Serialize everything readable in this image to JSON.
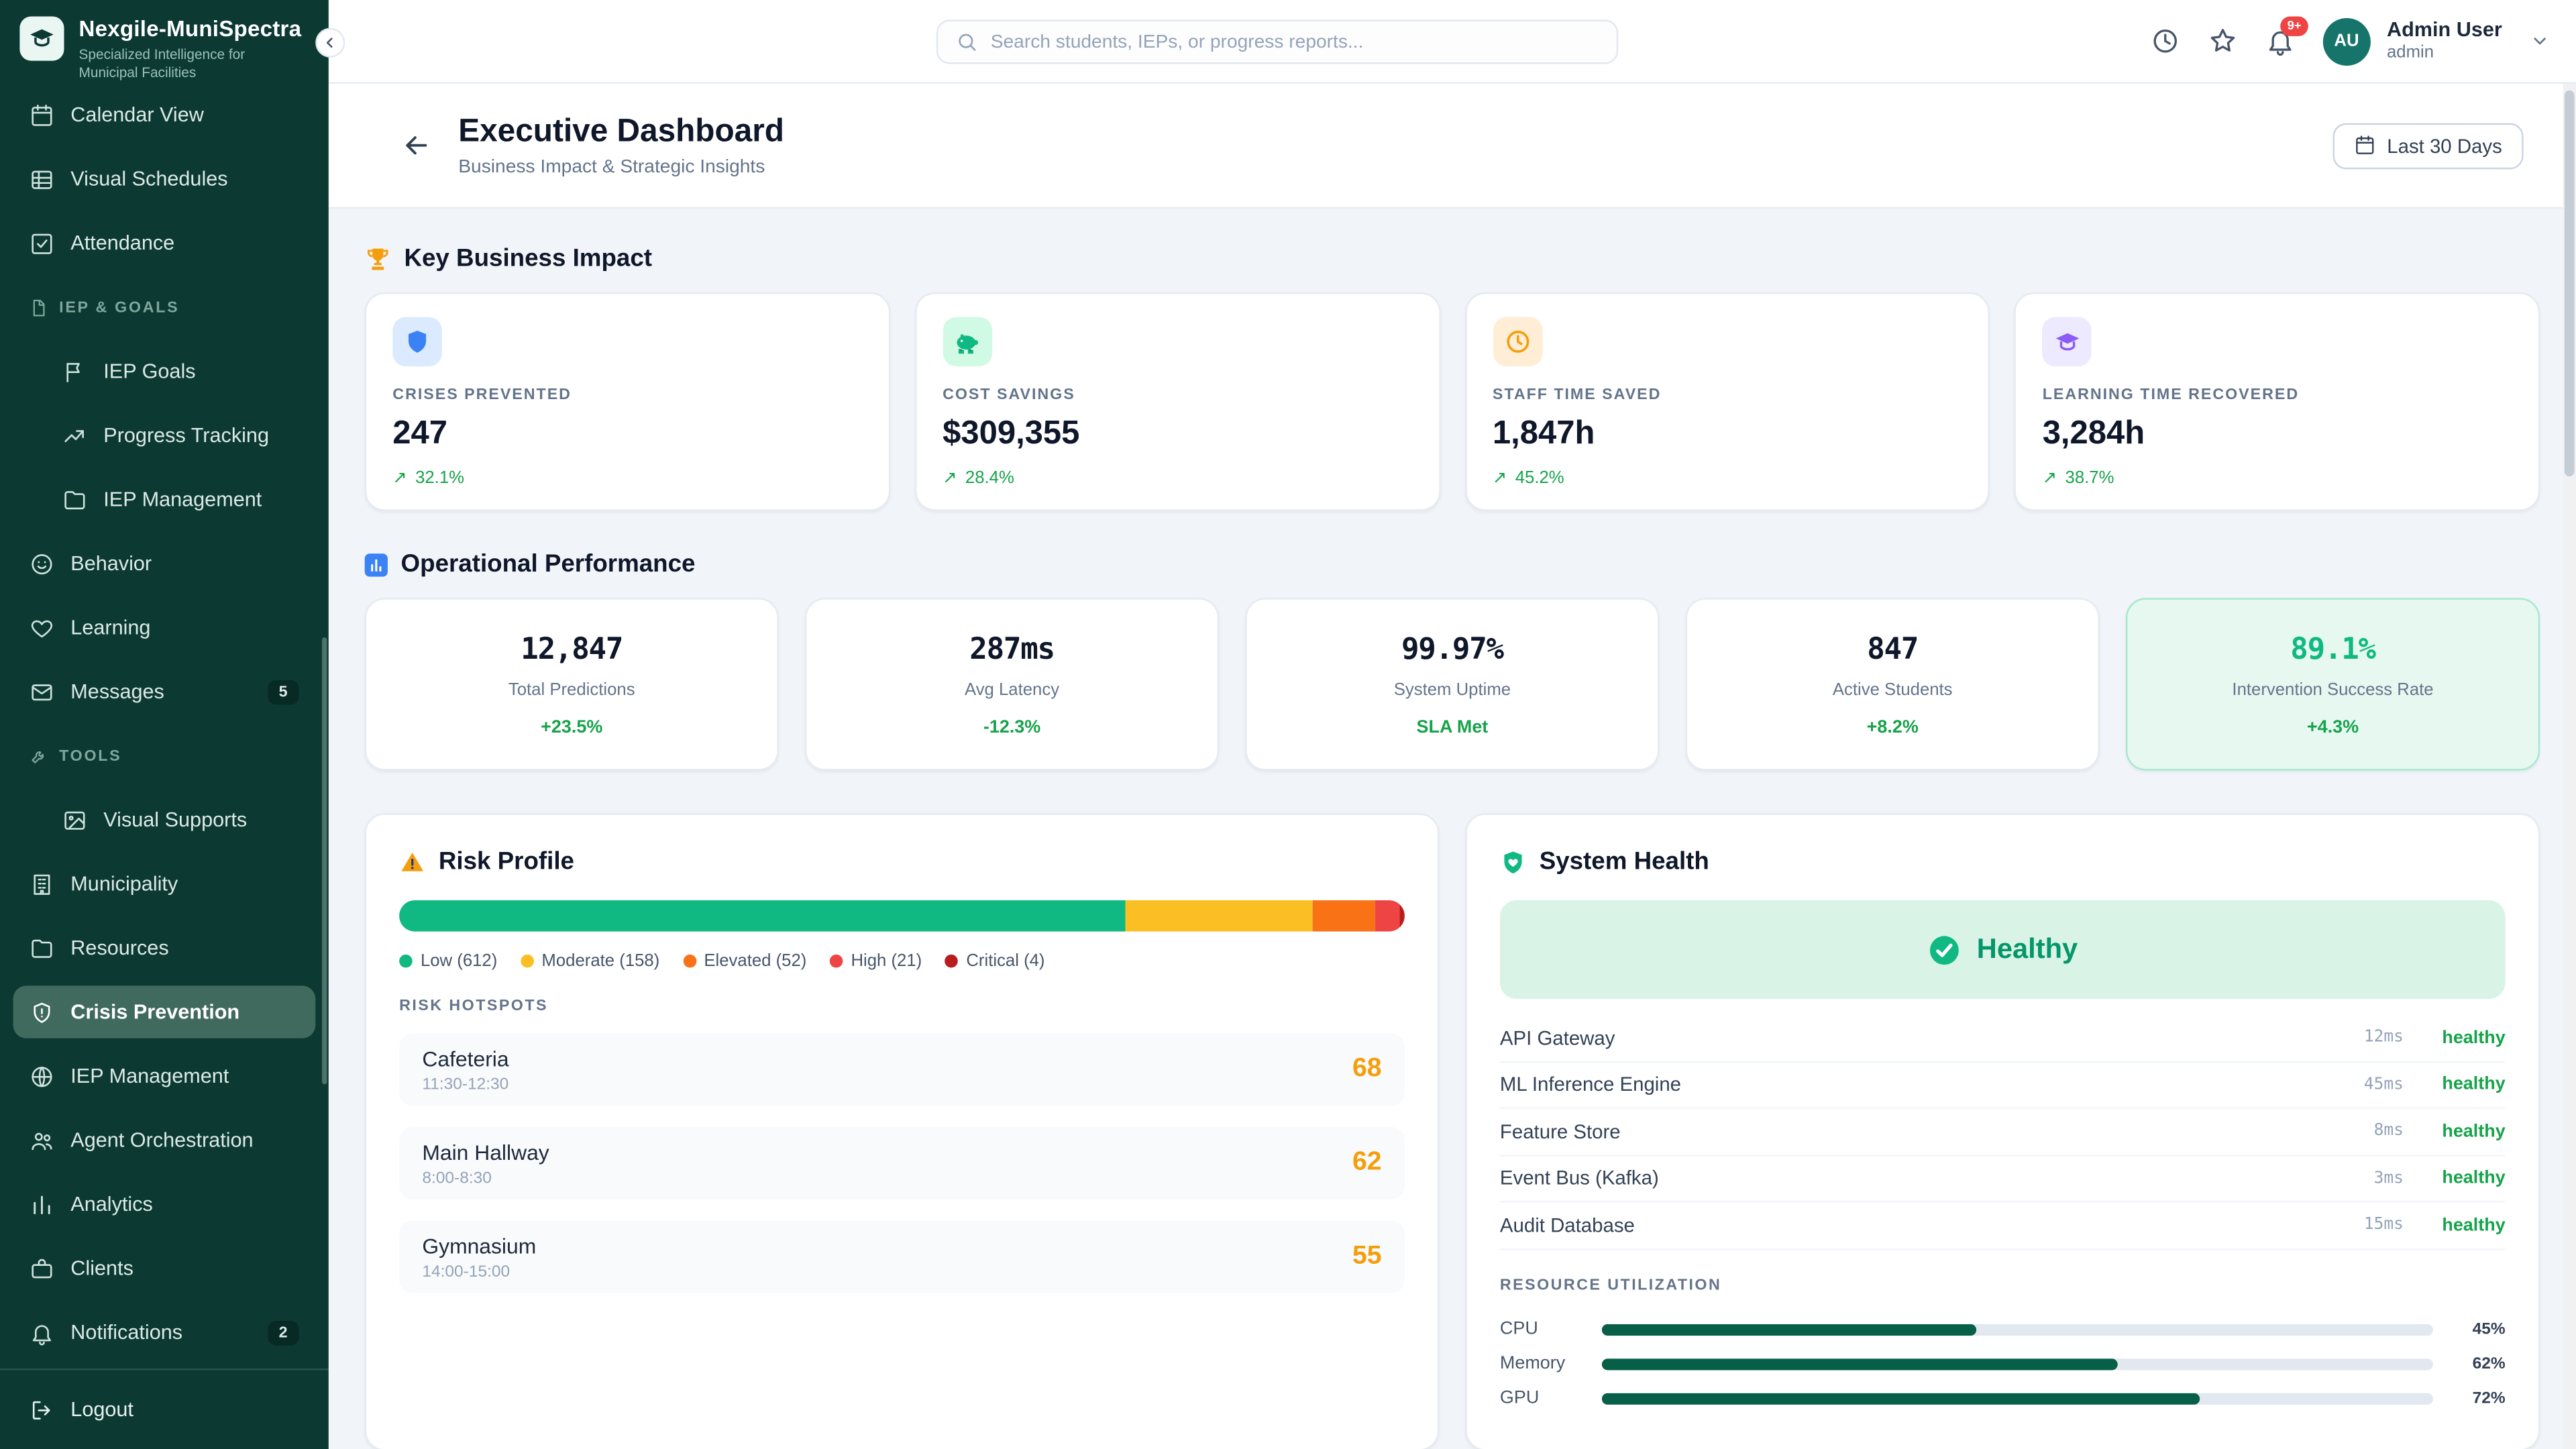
{
  "brand": {
    "title": "Nexgile-MuniSpectra",
    "subtitle": "Specialized Intelligence for Municipal Facilities"
  },
  "sidebar": {
    "items": [
      {
        "label": "Calendar View"
      },
      {
        "label": "Visual Schedules"
      },
      {
        "label": "Attendance"
      },
      {
        "label": "IEP & GOALS"
      },
      {
        "label": "IEP Goals"
      },
      {
        "label": "Progress Tracking"
      },
      {
        "label": "IEP Management"
      },
      {
        "label": "Behavior"
      },
      {
        "label": "Learning"
      },
      {
        "label": "Messages",
        "badge": "5"
      },
      {
        "label": "TOOLS"
      },
      {
        "label": "Visual Supports"
      },
      {
        "label": "Municipality"
      },
      {
        "label": "Resources"
      },
      {
        "label": "Crisis Prevention"
      },
      {
        "label": "IEP Management"
      },
      {
        "label": "Agent Orchestration"
      },
      {
        "label": "Analytics"
      },
      {
        "label": "Clients"
      },
      {
        "label": "Notifications",
        "badge": "2"
      }
    ],
    "logout_label": "Logout"
  },
  "topbar": {
    "search_placeholder": "Search students, IEPs, or progress reports...",
    "notification_badge": "9+",
    "user": {
      "initials": "AU",
      "name": "Admin User",
      "role": "admin"
    }
  },
  "page": {
    "title": "Executive Dashboard",
    "subtitle": "Business Impact & Strategic Insights",
    "date_range": "Last 30 Days"
  },
  "impact": {
    "section_title": "Key Business Impact",
    "cards": [
      {
        "label": "CRISES PREVENTED",
        "value": "247",
        "trend": "32.1%",
        "tint": "#dbeafe",
        "color": "#3b82f6"
      },
      {
        "label": "COST SAVINGS",
        "value": "$309,355",
        "trend": "28.4%",
        "tint": "#d1fae5",
        "color": "#10b981"
      },
      {
        "label": "STAFF TIME SAVED",
        "value": "1,847h",
        "trend": "45.2%",
        "tint": "#ffedd5",
        "color": "#f59e0b"
      },
      {
        "label": "LEARNING TIME RECOVERED",
        "value": "3,284h",
        "trend": "38.7%",
        "tint": "#ede9fe",
        "color": "#8b5cf6"
      }
    ]
  },
  "operational": {
    "section_title": "Operational Performance",
    "cards": [
      {
        "value": "12,847",
        "label": "Total Predictions",
        "trend": "+23.5%"
      },
      {
        "value": "287ms",
        "label": "Avg Latency",
        "trend": "-12.3%"
      },
      {
        "value": "99.97%",
        "label": "System Uptime",
        "trend": "SLA Met"
      },
      {
        "value": "847",
        "label": "Active Students",
        "trend": "+8.2%"
      },
      {
        "value": "89.1%",
        "label": "Intervention Success Rate",
        "trend": "+4.3%"
      }
    ]
  },
  "risk": {
    "title": "Risk Profile",
    "segments": [
      {
        "label": "Low",
        "count": 612,
        "legend": "Low (612)",
        "pct": 72.3,
        "color": "#10b981"
      },
      {
        "label": "Moderate",
        "count": 158,
        "legend": "Moderate (158)",
        "pct": 18.6,
        "color": "#fbbf24"
      },
      {
        "label": "Elevated",
        "count": 52,
        "legend": "Elevated (52)",
        "pct": 6.1,
        "color": "#f97316"
      },
      {
        "label": "High",
        "count": 21,
        "legend": "High (21)",
        "pct": 2.5,
        "color": "#ef4444"
      },
      {
        "label": "Critical",
        "count": 4,
        "legend": "Critical (4)",
        "pct": 0.5,
        "color": "#b91c1c"
      }
    ],
    "hotspots_title": "RISK HOTSPOTS",
    "hotspots": [
      {
        "name": "Cafeteria",
        "time": "11:30-12:30",
        "score": "68"
      },
      {
        "name": "Main Hallway",
        "time": "8:00-8:30",
        "score": "62"
      },
      {
        "name": "Gymnasium",
        "time": "14:00-15:00",
        "score": "55"
      }
    ]
  },
  "system": {
    "title": "System Health",
    "overall_status": "Healthy",
    "services": [
      {
        "name": "API Gateway",
        "latency": "12ms",
        "status": "healthy"
      },
      {
        "name": "ML Inference Engine",
        "latency": "45ms",
        "status": "healthy"
      },
      {
        "name": "Feature Store",
        "latency": "8ms",
        "status": "healthy"
      },
      {
        "name": "Event Bus (Kafka)",
        "latency": "3ms",
        "status": "healthy"
      },
      {
        "name": "Audit Database",
        "latency": "15ms",
        "status": "healthy"
      }
    ],
    "resources_title": "RESOURCE UTILIZATION",
    "resources": [
      {
        "name": "CPU",
        "pct": 45,
        "pct_label": "45%"
      },
      {
        "name": "Memory",
        "pct": 62,
        "pct_label": "62%"
      },
      {
        "name": "GPU",
        "pct": 72,
        "pct_label": "72%"
      }
    ]
  },
  "colors": {
    "accent": "#10b981",
    "sidebar_bg": "#0c3a33",
    "resource_fill": "#065f46"
  }
}
